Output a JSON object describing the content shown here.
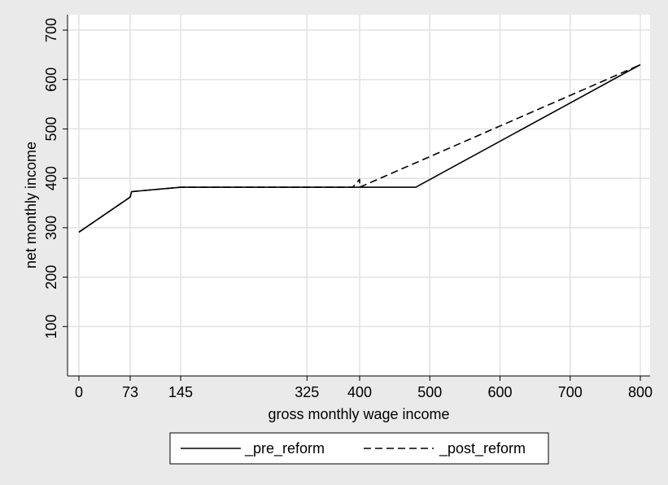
{
  "chart_data": {
    "type": "line",
    "title": "",
    "xlabel": "gross monthly wage income",
    "ylabel": "net monthly income",
    "xlim": [
      0,
      800
    ],
    "ylim": [
      0,
      700
    ],
    "x_ticks": [
      0,
      73,
      145,
      325,
      400,
      500,
      600,
      700,
      800
    ],
    "y_ticks": [
      100,
      200,
      300,
      400,
      500,
      600,
      700
    ],
    "grid": true,
    "legend_position": "bottom",
    "colors": {
      "background": "#eaeaea",
      "plot_area": "#ffffff",
      "grid": "#e2e2e2",
      "line": "#000000"
    },
    "series": [
      {
        "name": "_pre_reform",
        "style": "solid",
        "x": [
          0,
          73,
          75,
          145,
          480,
          800
        ],
        "y": [
          291,
          362,
          373,
          382,
          382,
          630
        ]
      },
      {
        "name": "_post_reform",
        "style": "dashed",
        "x": [
          0,
          73,
          75,
          145,
          390,
          400,
          400,
          760,
          800
        ],
        "y": [
          291,
          362,
          373,
          382,
          382,
          398,
          382,
          605,
          630
        ]
      }
    ]
  }
}
